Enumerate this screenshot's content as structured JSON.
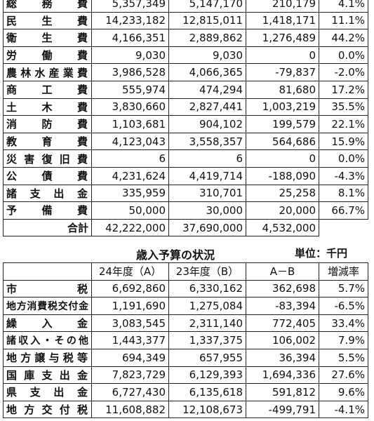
{
  "expenditure": {
    "rows": [
      {
        "label": "総務費",
        "fy24": "5,357,349",
        "fy23": "5,147,170",
        "diff": "210,179",
        "rate": "4.1%"
      },
      {
        "label": "民生費",
        "fy24": "14,233,182",
        "fy23": "12,815,011",
        "diff": "1,418,171",
        "rate": "11.1%"
      },
      {
        "label": "衛生費",
        "fy24": "4,166,351",
        "fy23": "2,889,862",
        "diff": "1,276,489",
        "rate": "44.2%"
      },
      {
        "label": "労働費",
        "fy24": "9,030",
        "fy23": "9,030",
        "diff": "0",
        "rate": "0.0%"
      },
      {
        "label": "農林水産業費",
        "fy24": "3,986,528",
        "fy23": "4,066,365",
        "diff": "-79,837",
        "rate": "-2.0%"
      },
      {
        "label": "商工費",
        "fy24": "555,974",
        "fy23": "474,294",
        "diff": "81,680",
        "rate": "17.2%"
      },
      {
        "label": "土木費",
        "fy24": "3,830,660",
        "fy23": "2,827,441",
        "diff": "1,003,219",
        "rate": "35.5%"
      },
      {
        "label": "消防費",
        "fy24": "1,103,681",
        "fy23": "904,102",
        "diff": "199,579",
        "rate": "22.1%"
      },
      {
        "label": "教育費",
        "fy24": "4,123,043",
        "fy23": "3,558,357",
        "diff": "564,686",
        "rate": "15.9%"
      },
      {
        "label": "災害復旧費",
        "fy24": "6",
        "fy23": "6",
        "diff": "0",
        "rate": "0.0%"
      },
      {
        "label": "公債費",
        "fy24": "4,231,624",
        "fy23": "4,419,714",
        "diff": "-188,090",
        "rate": "-4.3%"
      },
      {
        "label": "諸支出金",
        "fy24": "335,959",
        "fy23": "310,701",
        "diff": "25,258",
        "rate": "8.1%"
      },
      {
        "label": "予備費",
        "fy24": "50,000",
        "fy23": "30,000",
        "diff": "20,000",
        "rate": "66.7%"
      }
    ],
    "total": {
      "label": "合計",
      "fy24": "42,222,000",
      "fy23": "37,690,000",
      "diff": "4,532,000"
    }
  },
  "revenue": {
    "title": "歳入予算の状況",
    "unit": "単位：千円",
    "headers": {
      "fy24": "24年度（A）",
      "fy23": "23年度（B）",
      "diff": "A－B",
      "rate": "増減率"
    },
    "rows": [
      {
        "label": "市税",
        "fy24": "6,692,860",
        "fy23": "6,330,162",
        "diff": "362,698",
        "rate": "5.7%"
      },
      {
        "label": "地方消費税交付金",
        "fy24": "1,191,690",
        "fy23": "1,275,084",
        "diff": "-83,394",
        "rate": "-6.5%"
      },
      {
        "label": "繰入金",
        "fy24": "3,083,545",
        "fy23": "2,311,140",
        "diff": "772,405",
        "rate": "33.4%"
      },
      {
        "label": "諸収入・その他",
        "fy24": "1,443,377",
        "fy23": "1,337,375",
        "diff": "106,002",
        "rate": "7.9%"
      },
      {
        "label": "地方譲与税等",
        "fy24": "694,349",
        "fy23": "657,955",
        "diff": "36,394",
        "rate": "5.5%"
      },
      {
        "label": "国庫支出金",
        "fy24": "7,823,729",
        "fy23": "6,129,393",
        "diff": "1,694,336",
        "rate": "27.6%"
      },
      {
        "label": "県支出金",
        "fy24": "6,727,430",
        "fy23": "6,135,618",
        "diff": "591,812",
        "rate": "9.6%"
      },
      {
        "label": "地方交付税",
        "fy24": "11,608,882",
        "fy23": "12,108,673",
        "diff": "-499,791",
        "rate": "-4.1%"
      }
    ]
  }
}
